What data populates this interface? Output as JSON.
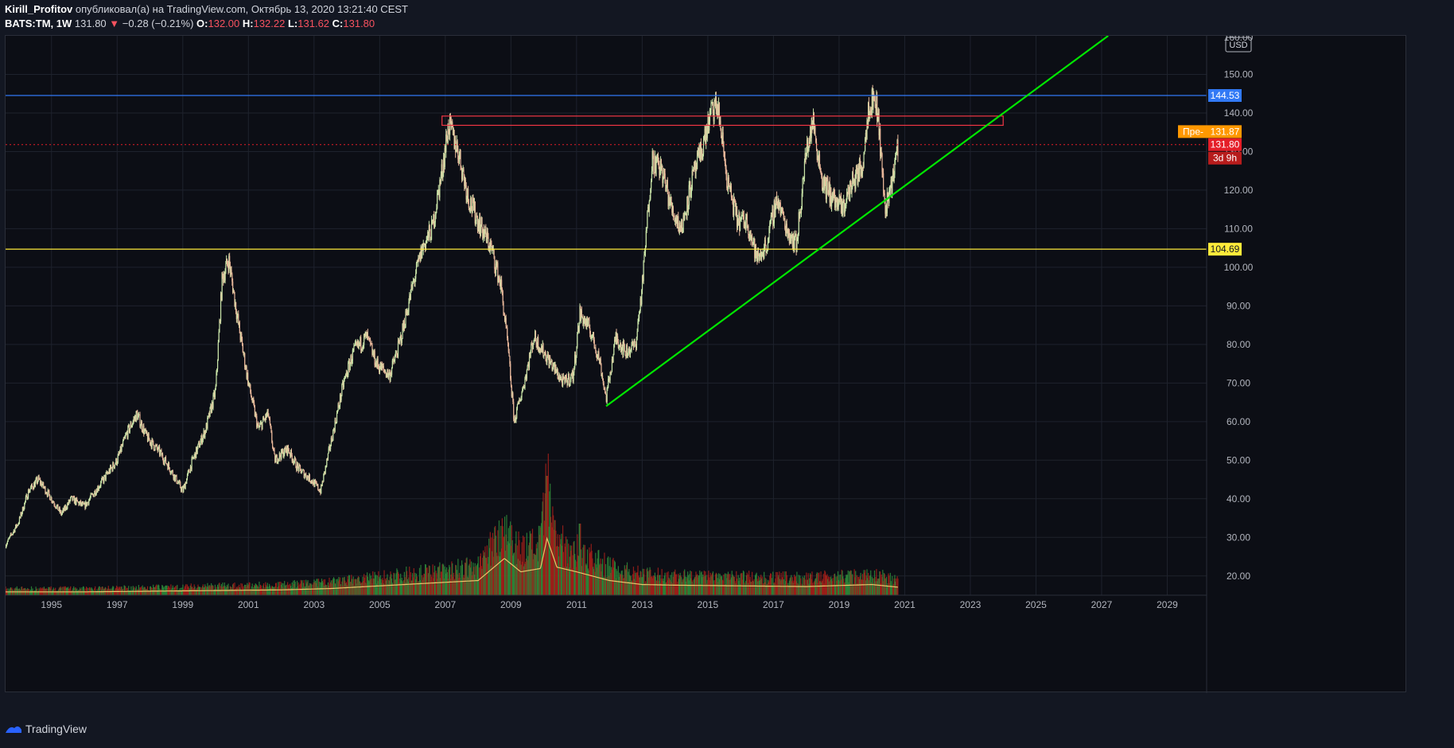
{
  "header": {
    "author": "Kirill_Profitov",
    "published_text": "опубликовал(а) на TradingView.com, Октябрь 13, 2020 13:21:40 CEST",
    "symbol": "BATS:TM",
    "interval": "1W",
    "last": "131.80",
    "change_arrow": "▼",
    "change": "−0.28 (−0.21%)",
    "o_label": "O:",
    "o": "132.00",
    "h_label": "H:",
    "h": "132.22",
    "l_label": "L:",
    "l": "131.62",
    "c_label": "C:",
    "c": "131.80"
  },
  "price_axis": {
    "currency": "USD",
    "top_label": "160.00",
    "ticks": [
      "150.00",
      "140.00",
      "130.00",
      "120.00",
      "110.00",
      "100.00",
      "90.00",
      "80.00",
      "70.00",
      "60.00",
      "50.00",
      "40.00",
      "30.00",
      "20.00"
    ]
  },
  "time_axis": {
    "ticks": [
      "1995",
      "1997",
      "1999",
      "2001",
      "2003",
      "2005",
      "2007",
      "2009",
      "2011",
      "2013",
      "2015",
      "2017",
      "2019",
      "2021",
      "2023",
      "2025",
      "2027",
      "2029"
    ]
  },
  "labels": {
    "blue_level": "144.53",
    "yellow_level": "104.69",
    "premarket_tag": "Пре-",
    "premarket_price": "131.87",
    "last_price": "131.80",
    "countdown": "3d 9h"
  },
  "colors": {
    "background": "#0c0e15",
    "candle_up": "#c9e4a8",
    "candle_down": "#e8b79a",
    "blue_line": "#3179f5",
    "yellow_line": "#ffeb3b",
    "trendline": "#00e600",
    "rectangle": "#f23645",
    "volume_up": "#2e8b3a",
    "volume_down": "#a8201a",
    "volume_ma": "#e8c46a",
    "last_price_label": "#e51e28",
    "premarket_label": "#ff9800",
    "countdown_label": "#b71c1c"
  },
  "footer": {
    "brand": "TradingView"
  },
  "chart_data": {
    "type": "candlestick",
    "symbol": "BATS:TM",
    "interval": "1W",
    "xlim": [
      1993.6,
      2030.2
    ],
    "ylim": [
      15,
      160
    ],
    "price_series": {
      "x": [
        1993.6,
        1994.0,
        1994.3,
        1994.6,
        1995.0,
        1995.3,
        1995.6,
        1996.0,
        1996.5,
        1997.0,
        1997.3,
        1997.6,
        1997.9,
        1998.3,
        1998.6,
        1999.0,
        1999.3,
        1999.7,
        2000.0,
        2000.2,
        2000.4,
        2000.7,
        2001.0,
        2001.3,
        2001.6,
        2001.8,
        2002.2,
        2002.5,
        2002.9,
        2003.2,
        2003.6,
        2003.9,
        2004.2,
        2004.6,
        2004.9,
        2005.3,
        2005.6,
        2006.0,
        2006.3,
        2006.6,
        2006.9,
        2007.1,
        2007.4,
        2007.7,
        2008.0,
        2008.4,
        2008.7,
        2008.9,
        2009.1,
        2009.4,
        2009.7,
        2010.0,
        2010.3,
        2010.6,
        2010.9,
        2011.1,
        2011.4,
        2011.7,
        2011.9,
        2012.2,
        2012.5,
        2012.8,
        2013.0,
        2013.3,
        2013.6,
        2013.9,
        2014.2,
        2014.5,
        2014.8,
        2015.1,
        2015.3,
        2015.6,
        2015.9,
        2016.2,
        2016.5,
        2016.8,
        2017.1,
        2017.4,
        2017.7,
        2018.0,
        2018.2,
        2018.5,
        2018.8,
        2019.1,
        2019.4,
        2019.7,
        2019.9,
        2020.1,
        2020.2,
        2020.4,
        2020.6,
        2020.8
      ],
      "y": [
        28,
        34,
        42,
        45,
        40,
        36,
        40,
        38,
        44,
        50,
        57,
        62,
        56,
        52,
        48,
        42,
        50,
        58,
        68,
        97,
        102,
        85,
        70,
        58,
        62,
        50,
        53,
        48,
        45,
        42,
        58,
        70,
        78,
        82,
        75,
        72,
        80,
        95,
        105,
        110,
        125,
        137,
        130,
        118,
        112,
        105,
        95,
        80,
        60,
        70,
        82,
        78,
        74,
        70,
        72,
        88,
        84,
        76,
        66,
        82,
        78,
        80,
        95,
        128,
        125,
        115,
        110,
        122,
        130,
        140,
        142,
        122,
        112,
        112,
        102,
        106,
        118,
        110,
        106,
        130,
        138,
        122,
        118,
        115,
        122,
        126,
        142,
        144,
        138,
        115,
        122,
        131.8
      ]
    },
    "volume_series": {
      "x": [
        1993.6,
        1996,
        1998,
        2000,
        2002,
        2003.5,
        2005,
        2006.5,
        2008,
        2008.8,
        2009.3,
        2009.9,
        2010.1,
        2010.4,
        2011,
        2012,
        2013,
        2014,
        2016,
        2018,
        2020,
        2020.8
      ],
      "y": [
        0.05,
        0.05,
        0.06,
        0.07,
        0.08,
        0.1,
        0.14,
        0.18,
        0.22,
        0.55,
        0.35,
        0.4,
        0.85,
        0.42,
        0.35,
        0.22,
        0.16,
        0.15,
        0.14,
        0.13,
        0.16,
        0.12
      ],
      "peak_spike_year": 2010.1
    },
    "horizontal_levels": [
      {
        "price": 144.53,
        "color": "blue"
      },
      {
        "price": 104.69,
        "color": "yellow"
      }
    ],
    "trendline": {
      "from": [
        2011.9,
        64
      ],
      "to": [
        2027.2,
        160
      ]
    },
    "rectangle": {
      "x": [
        2006.9,
        2024.0
      ],
      "y": [
        136.8,
        139.2
      ]
    },
    "last_price": 131.8,
    "premarket_price": 131.87
  }
}
